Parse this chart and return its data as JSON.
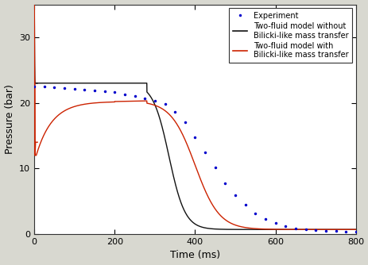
{
  "title": "",
  "xlabel": "Time (ms)",
  "ylabel": "Pressure (bar)",
  "xlim": [
    0,
    800
  ],
  "ylim": [
    0,
    35
  ],
  "yticks": [
    0,
    10,
    20,
    30
  ],
  "xticks": [
    0,
    200,
    400,
    600,
    800
  ],
  "fig_background_color": "#d8d8d0",
  "axes_background_color": "#ffffff",
  "legend_entries": [
    "Experiment",
    "Two-fluid model without\nBilicki-like mass transfer",
    "Two-fluid model with\nBilicki-like mass transfer"
  ],
  "exp_color": "#0000cc",
  "black_line_color": "#111111",
  "red_line_color": "#cc2200",
  "exp_t": [
    0,
    25,
    50,
    75,
    100,
    125,
    150,
    175,
    200,
    225,
    250,
    275,
    300,
    325,
    350,
    375,
    400,
    425,
    450,
    475,
    500,
    525,
    550,
    575,
    600,
    625,
    650,
    675,
    700,
    725,
    750,
    775,
    800
  ],
  "exp_p": [
    22.5,
    22.5,
    22.4,
    22.2,
    22.1,
    22.0,
    21.9,
    21.8,
    21.6,
    21.3,
    21.0,
    20.7,
    20.3,
    19.8,
    18.6,
    17.0,
    14.8,
    12.5,
    10.2,
    7.8,
    5.9,
    4.5,
    3.2,
    2.3,
    1.7,
    1.2,
    0.9,
    0.7,
    0.6,
    0.5,
    0.5,
    0.4,
    0.4
  ]
}
